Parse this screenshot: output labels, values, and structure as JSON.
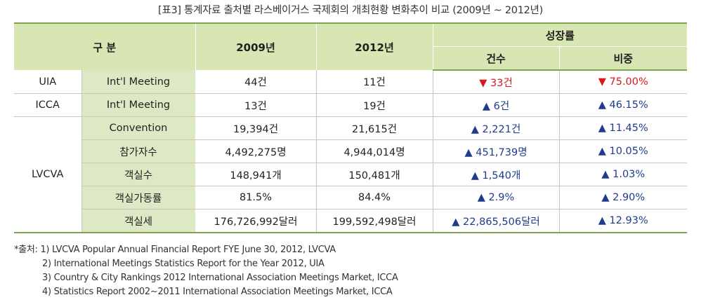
{
  "caption": "[표3] 통계자료 출처별 라스베이거스 국제회의 개최현황 변화추이 비교 (2009년 ~ 2012년)",
  "header": {
    "category": "구  분",
    "year_2009": "2009년",
    "year_2012": "2012년",
    "growth": "성장률",
    "count": "건수",
    "ratio": "비중"
  },
  "rows": [
    {
      "source": "UIA",
      "item": "Int'l Meeting",
      "v2009": "44건",
      "v2012": "11건",
      "count": "▼ 33건",
      "ratio": "▼ 75.00%",
      "trend": "down"
    },
    {
      "source": "ICCA",
      "item": "Int'l Meeting",
      "v2009": "13건",
      "v2012": "19건",
      "count": "▲ 6건",
      "ratio": "▲ 46.15%",
      "trend": "up"
    },
    {
      "source": "LVCVA",
      "item": "Convention",
      "v2009": "19,394건",
      "v2012": "21,615건",
      "count": "▲ 2,221건",
      "ratio": "▲ 11.45%",
      "trend": "up"
    },
    {
      "source": "",
      "item": "참가자수",
      "v2009": "4,492,275명",
      "v2012": "4,944,014명",
      "count": "▲ 451,739명",
      "ratio": "▲ 10.05%",
      "trend": "up"
    },
    {
      "source": "",
      "item": "객실수",
      "v2009": "148,941개",
      "v2012": "150,481개",
      "count": "▲ 1,540개",
      "ratio": "▲ 1.03%",
      "trend": "up"
    },
    {
      "source": "",
      "item": "객실가동률",
      "v2009": "81.5%",
      "v2012": "84.4%",
      "count": "▲ 2.9%",
      "ratio": "▲ 2.90%",
      "trend": "up"
    },
    {
      "source": "",
      "item": "객실세",
      "v2009": "176,726,992달러",
      "v2012": "199,592,498달러",
      "count": "▲ 22,865,506달러",
      "ratio": "▲ 12.93%",
      "trend": "up"
    }
  ],
  "notes": {
    "label": "*출처:",
    "items": [
      "1) LVCVA Popular Annual Financial Report FYE June 30, 2012, LVCVA",
      "2) International Meetings Statistics Report for the Year 2012, UIA",
      "3) Country & City Rankings 2012 International Association Meetings Market, ICCA",
      "4) Statistics Report 2002~2011 International Association Meetings Market, ICCA"
    ]
  },
  "colors": {
    "header_bg": "#d7e6b3",
    "item_bg": "#dde8c4",
    "rule": "#7ea54b",
    "down": "#d7191c",
    "up": "#1f3c88"
  }
}
